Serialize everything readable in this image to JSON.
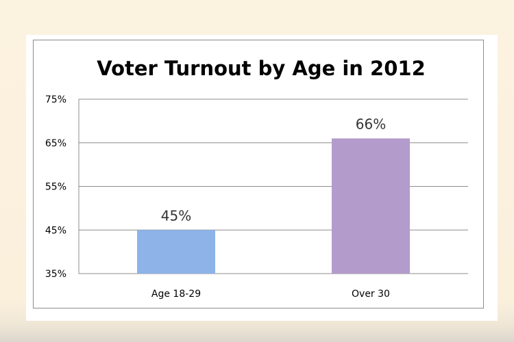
{
  "chart_data": {
    "type": "bar",
    "title": "Voter Turnout by Age in 2012",
    "categories": [
      "Age 18-29",
      "Over 30"
    ],
    "values": [
      45,
      66
    ],
    "data_labels": [
      "45%",
      "66%"
    ],
    "colors": [
      "#8db3e8",
      "#b39ccb"
    ],
    "ylim": [
      35,
      75
    ],
    "yticks": [
      35,
      45,
      55,
      65,
      75
    ],
    "ytick_labels": [
      "35%",
      "45%",
      "55%",
      "65%",
      "75%"
    ],
    "grid": true,
    "legend": "none"
  }
}
